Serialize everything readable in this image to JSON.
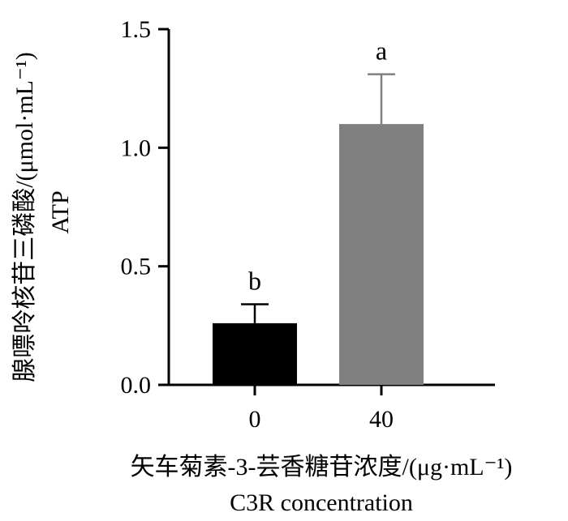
{
  "chart_data": {
    "type": "bar",
    "categories": [
      "0",
      "40"
    ],
    "values": [
      0.26,
      1.1
    ],
    "error_upper": [
      0.34,
      1.31
    ],
    "significance_labels": [
      "b",
      "a"
    ],
    "bar_colors": [
      "#000000",
      "#808080"
    ],
    "title": "",
    "xlabel_cn": "矢车菊素-3-芸香糖苷浓度/(μg·mL⁻¹)",
    "xlabel_en": "C3R concentration",
    "ylabel_cn": "腺嘌呤核苷三磷酸/(μmol·mL⁻¹)",
    "ylabel_en": "ATP",
    "ylim": [
      0,
      1.5
    ],
    "yticks": [
      "0.0",
      "0.5",
      "1.0",
      "1.5"
    ],
    "grid": false,
    "legend": false
  }
}
